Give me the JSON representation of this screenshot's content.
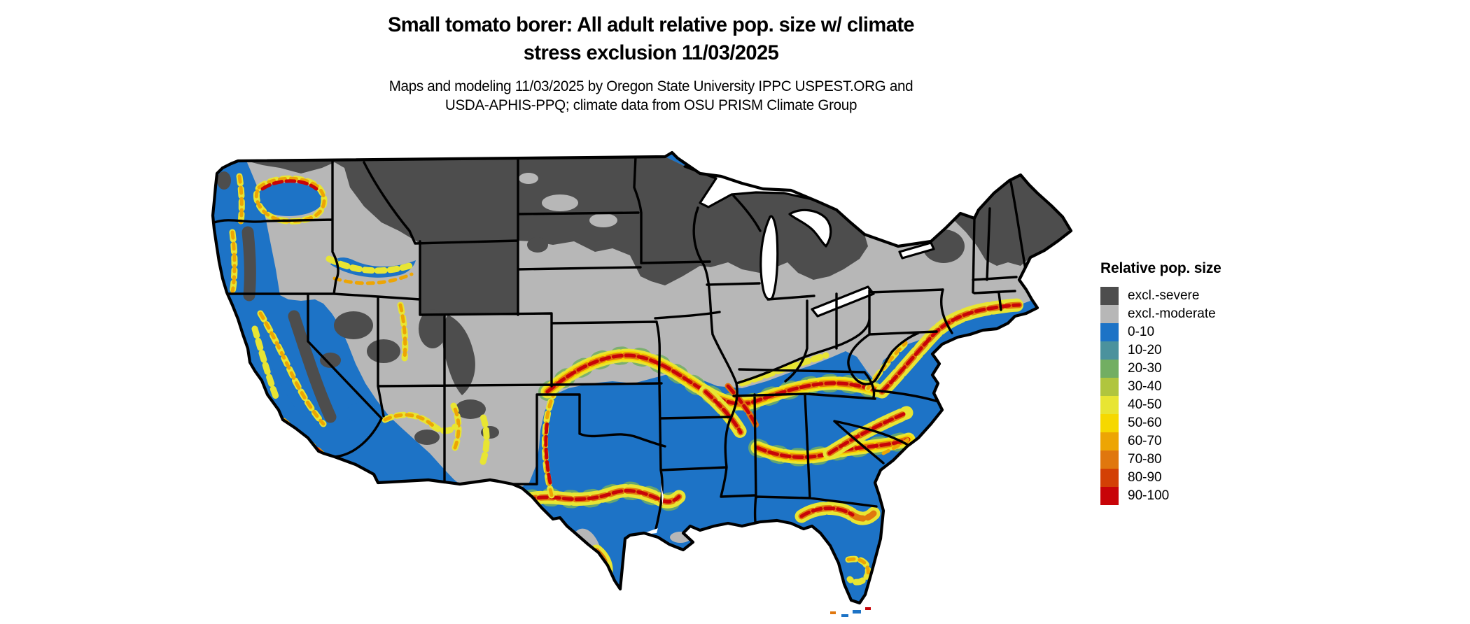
{
  "title": {
    "line1": "Small tomato borer: All adult relative pop. size w/ climate",
    "line2": "stress exclusion 11/03/2025"
  },
  "subtitle": {
    "line1": "Maps and modeling 11/03/2025 by Oregon State University IPPC USPEST.ORG and",
    "line2": "USDA-APHIS-PPQ; climate data from OSU PRISM Climate Group"
  },
  "legend": {
    "title": "Relative pop. size",
    "items": [
      {
        "label": "excl.-severe",
        "key": "excl_severe",
        "color": "#4d4d4d"
      },
      {
        "label": "excl.-moderate",
        "key": "excl_moderate",
        "color": "#b7b7b7"
      },
      {
        "label": "0-10",
        "key": "b0_10",
        "color": "#1d73c6"
      },
      {
        "label": "10-20",
        "key": "b10_20",
        "color": "#4b929d"
      },
      {
        "label": "20-30",
        "key": "b20_30",
        "color": "#72ae62"
      },
      {
        "label": "30-40",
        "key": "b30_40",
        "color": "#b0c53e"
      },
      {
        "label": "40-50",
        "key": "b40_50",
        "color": "#e8e533"
      },
      {
        "label": "50-60",
        "key": "b50_60",
        "color": "#f6d800"
      },
      {
        "label": "60-70",
        "key": "b60_70",
        "color": "#eda504"
      },
      {
        "label": "70-80",
        "key": "b70_80",
        "color": "#e0770e"
      },
      {
        "label": "80-90",
        "key": "b80_90",
        "color": "#d34005"
      },
      {
        "label": "90-100",
        "key": "b90_100",
        "color": "#c80408"
      }
    ]
  },
  "map": {
    "region_depicted": "Continental United States with state boundaries",
    "date_shown": "11/03/2025",
    "pattern_summary": "Northern tier and mountain west excluded (severe, dark gray); transition band excluded-moderate (light gray); southern and coastal regions 0-10 (blue) with mottled 40-100 bands along climatic transition zones"
  }
}
